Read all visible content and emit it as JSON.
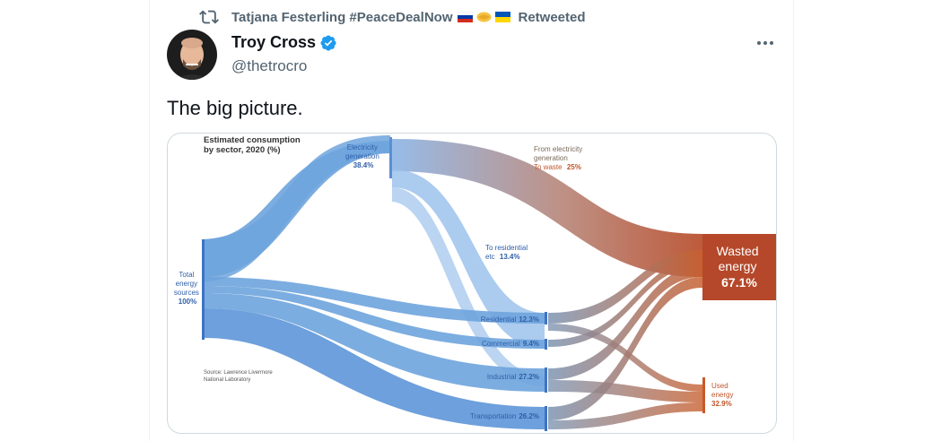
{
  "retweet": {
    "icon": "retweet-icon",
    "user": "Tatjana Festerling #PeaceDealNow",
    "flags": [
      "russia-flag",
      "handshake-emoji",
      "ukraine-flag"
    ],
    "label": "Retweeted"
  },
  "author": {
    "name": "Troy Cross",
    "handle": "@thetrocro",
    "verified": true
  },
  "tweet": {
    "text": "The big picture."
  },
  "figure": {
    "title_line1": "Estimated consumption",
    "title_line2": "by sector, 2020 (%)",
    "source_line1": "Source: Lawrence Livermore",
    "source_line2": "National Laboratory",
    "total": {
      "l1": "Total",
      "l2": "energy",
      "l3": "sources",
      "value": "100%"
    },
    "electricity": {
      "l1": "Electricity",
      "l2": "generation",
      "value": "38.4%"
    },
    "from_elec": {
      "l1": "From electricity",
      "l2": "generation",
      "l3": "To waste",
      "value": "25%"
    },
    "to_res": {
      "l1": "To residential",
      "l2": "etc",
      "value": "13.4%"
    },
    "residential": {
      "label": "Residential",
      "value": "12.3%"
    },
    "commercial": {
      "label": "Commercial",
      "value": "9.4%"
    },
    "industrial": {
      "label": "Industrial",
      "value": "27.2%"
    },
    "transportation": {
      "label": "Transportation",
      "value": "26.2%"
    },
    "wasted": {
      "l1": "Wasted",
      "l2": "energy",
      "value": "67.1%"
    },
    "used": {
      "l1": "Used",
      "l2": "energy",
      "value": "32.9%"
    },
    "colors": {
      "blue": "#6fa3dc",
      "blue_dark": "#3e74c2",
      "orange": "#c85a2a",
      "waste_box": "#b5482a"
    }
  }
}
